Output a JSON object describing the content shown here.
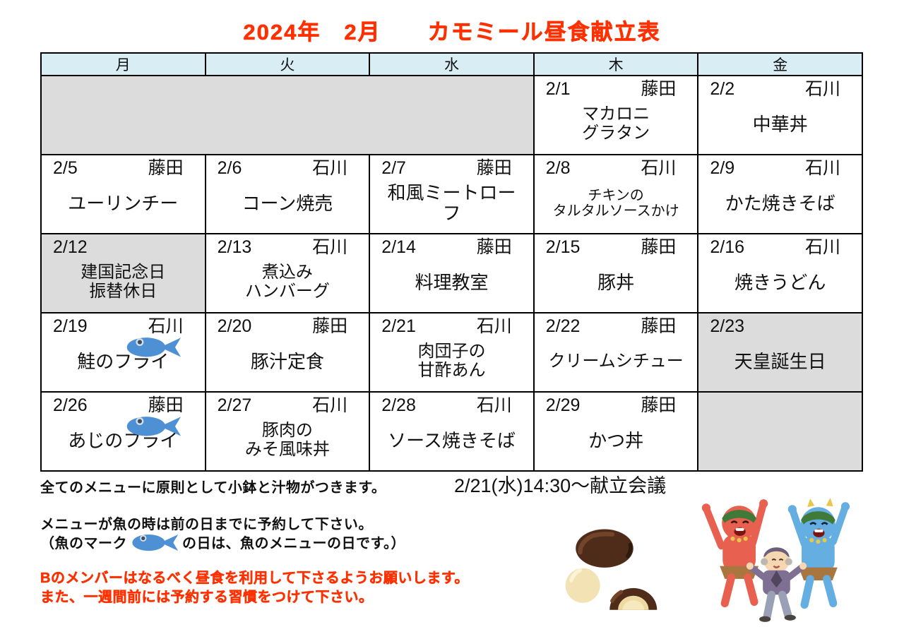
{
  "title": "2024年　2月　　カモミール昼食献立表",
  "colors": {
    "accent_red": "#ff3000",
    "header_bg": "#d8edf4",
    "gray_bg": "#dcdcdc",
    "fish_blue": "#4e90d4"
  },
  "calendar": {
    "weekdays": [
      "月",
      "火",
      "水",
      "木",
      "金"
    ],
    "rows": [
      {
        "cells": [
          {
            "type": "empty",
            "colspan": 3
          },
          {
            "type": "menu",
            "date": "2/1",
            "staff": "藤田",
            "menu": [
              "マカロニ",
              "グラタン"
            ],
            "size": "mid"
          },
          {
            "type": "menu",
            "date": "2/2",
            "staff": "石川",
            "menu": [
              "中華丼"
            ]
          }
        ]
      },
      {
        "cells": [
          {
            "type": "menu",
            "date": "2/5",
            "staff": "藤田",
            "menu": [
              "ユーリンチー"
            ]
          },
          {
            "type": "menu",
            "date": "2/6",
            "staff": "石川",
            "menu": [
              "コーン焼売"
            ]
          },
          {
            "type": "menu",
            "date": "2/7",
            "staff": "藤田",
            "menu": [
              "和風ミートロー",
              "フ"
            ]
          },
          {
            "type": "menu",
            "date": "2/8",
            "staff": "石川",
            "menu": [
              "チキンの",
              "タルタルソースかけ"
            ],
            "size": "small"
          },
          {
            "type": "menu",
            "date": "2/9",
            "staff": "石川",
            "menu": [
              "かた焼きそば"
            ]
          }
        ]
      },
      {
        "cells": [
          {
            "type": "holiday",
            "date": "2/12",
            "staff": "",
            "menu": [
              "建国記念日",
              "振替休日"
            ],
            "size": "mid"
          },
          {
            "type": "menu",
            "date": "2/13",
            "staff": "石川",
            "menu": [
              "煮込み",
              "ハンバーグ"
            ],
            "size": "mid"
          },
          {
            "type": "menu",
            "date": "2/14",
            "staff": "藤田",
            "menu": [
              "料理教室"
            ]
          },
          {
            "type": "menu",
            "date": "2/15",
            "staff": "藤田",
            "menu": [
              "豚丼"
            ]
          },
          {
            "type": "menu",
            "date": "2/16",
            "staff": "石川",
            "menu": [
              "焼きうどん"
            ]
          }
        ]
      },
      {
        "cells": [
          {
            "type": "menu",
            "date": "2/19",
            "staff": "石川",
            "fish": true,
            "menu": [
              "鮭のフライ"
            ]
          },
          {
            "type": "menu",
            "date": "2/20",
            "staff": "藤田",
            "menu": [
              "豚汁定食"
            ]
          },
          {
            "type": "menu",
            "date": "2/21",
            "staff": "石川",
            "menu": [
              "肉団子の",
              "甘酢あん"
            ],
            "size": "mid"
          },
          {
            "type": "menu",
            "date": "2/22",
            "staff": "藤田",
            "menu": [
              "クリームシチュー"
            ],
            "size": "mid"
          },
          {
            "type": "holiday",
            "date": "2/23",
            "staff": "",
            "menu": [
              "天皇誕生日"
            ]
          }
        ]
      },
      {
        "cells": [
          {
            "type": "menu",
            "date": "2/26",
            "staff": "藤田",
            "fish": true,
            "menu": [
              "あじのフライ"
            ]
          },
          {
            "type": "menu",
            "date": "2/27",
            "staff": "石川",
            "menu": [
              "豚肉の",
              "みそ風味丼"
            ],
            "size": "mid"
          },
          {
            "type": "menu",
            "date": "2/28",
            "staff": "石川",
            "menu": [
              "ソース焼きそば"
            ]
          },
          {
            "type": "menu",
            "date": "2/29",
            "staff": "藤田",
            "menu": [
              "かつ丼"
            ]
          },
          {
            "type": "empty"
          }
        ]
      }
    ]
  },
  "notes": {
    "note1": "全てのメニューに原則として小鉢と汁物がつきます。",
    "meeting": "2/21(水)14:30～献立会議",
    "note2_line1": "メニューが魚の時は前の日までに予約して下さい。",
    "note2_line2_pre": "（魚のマーク",
    "note2_line2_post": "の日は、魚のメニューの日です。）",
    "note3_line1": "Bのメンバーはなるべく昼食を利用して下さるようお願いします。",
    "note3_line2": "また、一週間前には予約する習慣をつけて下さい。"
  }
}
